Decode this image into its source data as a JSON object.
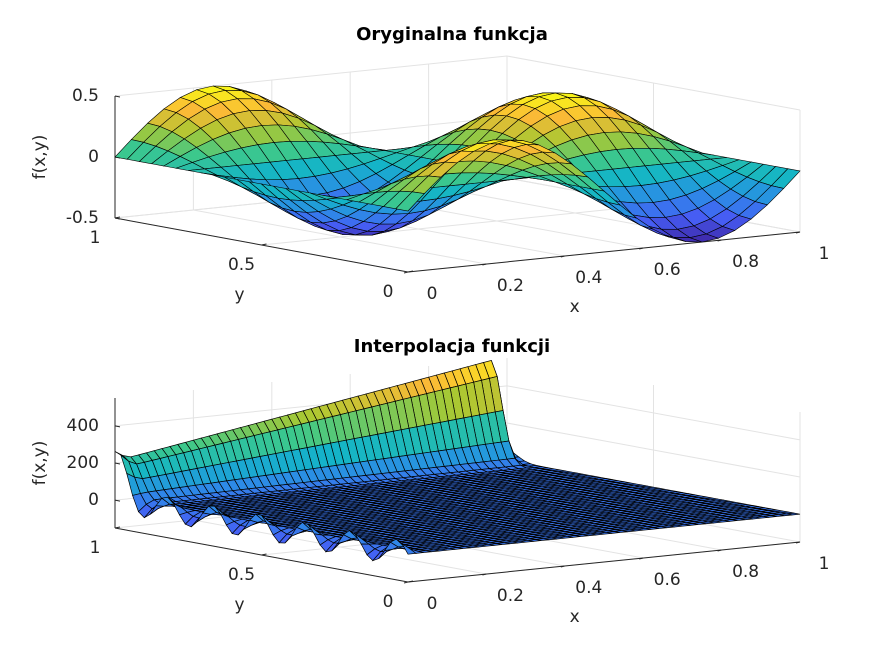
{
  "chart_data": [
    {
      "type": "surface",
      "title": "Oryginalna funkcja",
      "xlabel": "x",
      "ylabel": "y",
      "zlabel": "f(x,y)",
      "xlim": [
        0,
        1
      ],
      "xticks": [
        0,
        0.2,
        0.4,
        0.6,
        0.8,
        1
      ],
      "ylim": [
        0,
        1
      ],
      "yticks": [
        0,
        0.5,
        1
      ],
      "zlim": [
        -0.5,
        0.5
      ],
      "zticks": [
        -0.5,
        0,
        0.5
      ],
      "grid": true
    },
    {
      "type": "surface",
      "title": "Interpolacja funkcji",
      "xlabel": "x",
      "ylabel": "y",
      "zlabel": "f(x,y)",
      "xlim": [
        0,
        1
      ],
      "xticks": [
        0,
        0.2,
        0.4,
        0.6,
        0.8,
        1
      ],
      "ylim": [
        0,
        1
      ],
      "yticks": [
        0,
        0.5,
        1
      ],
      "zlim": [
        -150,
        550
      ],
      "zticks": [
        0,
        200,
        400
      ],
      "grid": true
    }
  ]
}
